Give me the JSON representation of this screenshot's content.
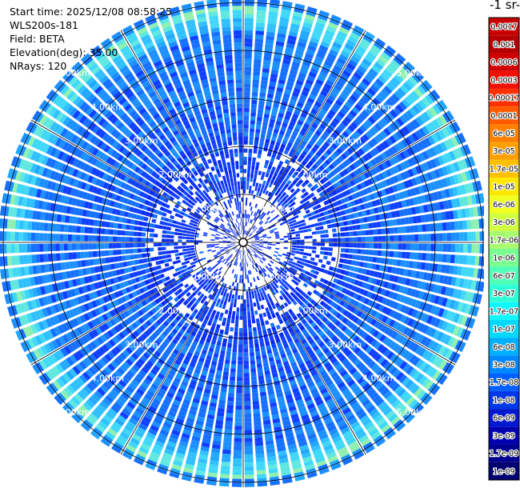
{
  "info": {
    "start_time": "Start time: 2025/12/08 08:58:25",
    "station": "WLS200s-181",
    "field": "Field: BETA",
    "elevation": "Elevation(deg): 35.00",
    "nrays": "NRays: 120"
  },
  "colorbar": {
    "title": "-1 sr-",
    "labels": [
      "0.0017",
      "0.001",
      "0.0006",
      "0.0003",
      "0.00017",
      "0.0001",
      "6e-05",
      "3e-05",
      "1.7e-05",
      "1e-05",
      "6e-06",
      "3e-06",
      "1.7e-06",
      "1e-06",
      "6e-07",
      "3e-07",
      "1.7e-07",
      "1e-07",
      "6e-08",
      "3e-08",
      "1.7e-08",
      "1e-08",
      "6e-09",
      "3e-09",
      "1.7e-09",
      "1e-09"
    ],
    "colors": [
      "#c80000",
      "#b40000",
      "#d00000",
      "#f01000",
      "#ff3000",
      "#ff5a00",
      "#ff8000",
      "#ffa000",
      "#ffc000",
      "#ffe800",
      "#f0ff20",
      "#d0ff40",
      "#a8ff70",
      "#78ff90",
      "#50ffb8",
      "#30ffd8",
      "#10f8ff",
      "#00d8ff",
      "#00b0ff",
      "#0088ff",
      "#0060ff",
      "#0038e8",
      "#0018d0",
      "#0000b0",
      "#000090",
      "#000070"
    ]
  },
  "chart_data": {
    "type": "ppi",
    "field": "BETA",
    "elevation_deg": 35.0,
    "nrays": 120,
    "range_rings_km": [
      1,
      2,
      3,
      4,
      5
    ],
    "range_labels": [
      "1.00km",
      "2.00km",
      "3.00km",
      "4.00km",
      "5.00km"
    ],
    "max_range_km": 5.1,
    "azimuth_gridlines_deg": [
      0,
      30,
      60,
      90,
      120,
      150,
      180,
      210,
      240,
      270,
      300,
      330
    ],
    "radial_profile_note": "sparse blue near centre, light-blue/cyan band near 4.6-4.8 km"
  }
}
